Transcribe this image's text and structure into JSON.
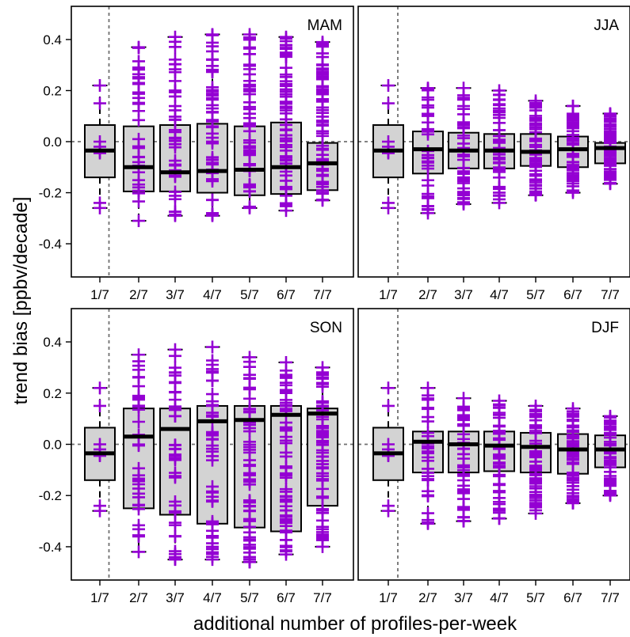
{
  "chart_data": {
    "type": "box",
    "ylabel": "trend bias [ppbv/decade]",
    "xlabel": "additional number of profiles-per-week",
    "categories": [
      "1/7",
      "2/7",
      "3/7",
      "4/7",
      "5/7",
      "6/7",
      "7/7"
    ],
    "ylim": [
      -0.53,
      0.53
    ],
    "yticks": [
      -0.4,
      -0.2,
      0.0,
      0.2,
      0.4
    ],
    "ytick_labels": [
      "-0.4",
      "-0.2",
      "0.0",
      "0.2",
      "0.4"
    ],
    "reference_line_y": 0.0,
    "reference_line_between_categories": [
      "1/7",
      "2/7"
    ],
    "box_fill": "#d3d3d3",
    "point_color": "#9400d3",
    "panels": [
      {
        "title": "MAM",
        "boxes": [
          {
            "category": "1/7",
            "whisker_low": -0.26,
            "q1": -0.14,
            "median": -0.035,
            "q3": 0.065,
            "whisker_high": 0.22
          },
          {
            "category": "2/7",
            "whisker_low": -0.31,
            "q1": -0.195,
            "median": -0.1,
            "q3": 0.06,
            "whisker_high": 0.37
          },
          {
            "category": "3/7",
            "whisker_low": -0.29,
            "q1": -0.195,
            "median": -0.12,
            "q3": 0.065,
            "whisker_high": 0.41
          },
          {
            "category": "4/7",
            "whisker_low": -0.29,
            "q1": -0.2,
            "median": -0.115,
            "q3": 0.07,
            "whisker_high": 0.42
          },
          {
            "category": "5/7",
            "whisker_low": -0.26,
            "q1": -0.21,
            "median": -0.11,
            "q3": 0.06,
            "whisker_high": 0.42
          },
          {
            "category": "6/7",
            "whisker_low": -0.27,
            "q1": -0.205,
            "median": -0.1,
            "q3": 0.075,
            "whisker_high": 0.41
          },
          {
            "category": "7/7",
            "whisker_low": -0.23,
            "q1": -0.19,
            "median": -0.085,
            "q3": -0.005,
            "whisker_high": 0.39
          }
        ]
      },
      {
        "title": "JJA",
        "boxes": [
          {
            "category": "1/7",
            "whisker_low": -0.26,
            "q1": -0.14,
            "median": -0.035,
            "q3": 0.065,
            "whisker_high": 0.22
          },
          {
            "category": "2/7",
            "whisker_low": -0.28,
            "q1": -0.125,
            "median": -0.03,
            "q3": 0.04,
            "whisker_high": 0.21
          },
          {
            "category": "3/7",
            "whisker_low": -0.245,
            "q1": -0.105,
            "median": -0.035,
            "q3": 0.035,
            "whisker_high": 0.21
          },
          {
            "category": "4/7",
            "whisker_low": -0.24,
            "q1": -0.105,
            "median": -0.035,
            "q3": 0.03,
            "whisker_high": 0.2
          },
          {
            "category": "5/7",
            "whisker_low": -0.21,
            "q1": -0.095,
            "median": -0.04,
            "q3": 0.03,
            "whisker_high": 0.16
          },
          {
            "category": "6/7",
            "whisker_low": -0.2,
            "q1": -0.1,
            "median": -0.03,
            "q3": 0.02,
            "whisker_high": 0.14
          },
          {
            "category": "7/7",
            "whisker_low": -0.165,
            "q1": -0.085,
            "median": -0.025,
            "q3": -0.005,
            "whisker_high": 0.11
          }
        ]
      },
      {
        "title": "SON",
        "boxes": [
          {
            "category": "1/7",
            "whisker_low": -0.26,
            "q1": -0.14,
            "median": -0.035,
            "q3": 0.065,
            "whisker_high": 0.22
          },
          {
            "category": "2/7",
            "whisker_low": -0.42,
            "q1": -0.25,
            "median": 0.03,
            "q3": 0.14,
            "whisker_high": 0.35
          },
          {
            "category": "3/7",
            "whisker_low": -0.45,
            "q1": -0.275,
            "median": 0.06,
            "q3": 0.14,
            "whisker_high": 0.37
          },
          {
            "category": "4/7",
            "whisker_low": -0.45,
            "q1": -0.31,
            "median": 0.09,
            "q3": 0.15,
            "whisker_high": 0.38
          },
          {
            "category": "5/7",
            "whisker_low": -0.46,
            "q1": -0.325,
            "median": 0.095,
            "q3": 0.15,
            "whisker_high": 0.34
          },
          {
            "category": "6/7",
            "whisker_low": -0.43,
            "q1": -0.34,
            "median": 0.115,
            "q3": 0.15,
            "whisker_high": 0.32
          },
          {
            "category": "7/7",
            "whisker_low": -0.4,
            "q1": -0.24,
            "median": 0.12,
            "q3": 0.14,
            "whisker_high": 0.3
          }
        ]
      },
      {
        "title": "DJF",
        "boxes": [
          {
            "category": "1/7",
            "whisker_low": -0.26,
            "q1": -0.14,
            "median": -0.035,
            "q3": 0.065,
            "whisker_high": 0.22
          },
          {
            "category": "2/7",
            "whisker_low": -0.31,
            "q1": -0.11,
            "median": 0.01,
            "q3": 0.05,
            "whisker_high": 0.22
          },
          {
            "category": "3/7",
            "whisker_low": -0.3,
            "q1": -0.11,
            "median": 0.0,
            "q3": 0.05,
            "whisker_high": 0.18
          },
          {
            "category": "4/7",
            "whisker_low": -0.29,
            "q1": -0.105,
            "median": -0.005,
            "q3": 0.05,
            "whisker_high": 0.17
          },
          {
            "category": "5/7",
            "whisker_low": -0.27,
            "q1": -0.11,
            "median": -0.01,
            "q3": 0.045,
            "whisker_high": 0.15
          },
          {
            "category": "6/7",
            "whisker_low": -0.23,
            "q1": -0.115,
            "median": -0.02,
            "q3": 0.04,
            "whisker_high": 0.14
          },
          {
            "category": "7/7",
            "whisker_low": -0.2,
            "q1": -0.09,
            "median": -0.02,
            "q3": 0.035,
            "whisker_high": 0.11
          }
        ]
      }
    ]
  }
}
